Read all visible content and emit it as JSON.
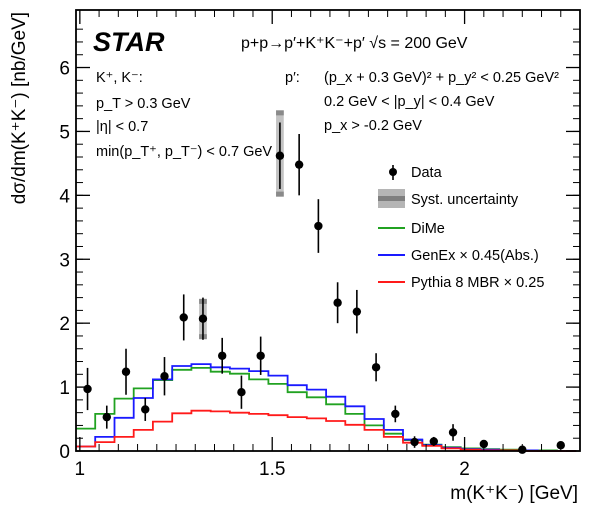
{
  "chart_data": {
    "type": "scatter",
    "experiment": "STAR",
    "process": "p+p→p′+K⁺K⁻+p′   √s = 200 GeV",
    "xlabel": "m(K⁺K⁻) [GeV]",
    "ylabel": "dσ/dm(K⁺K⁻) [nb/GeV]",
    "xlim": [
      0.99,
      2.3
    ],
    "ylim": [
      0,
      6.9
    ],
    "xticks": [
      1,
      1.5,
      2
    ],
    "yticks": [
      0,
      1,
      2,
      3,
      4,
      5,
      6
    ],
    "annotations": {
      "kaon_head": "K⁺, K⁻:",
      "kaon_cuts": [
        "p_T > 0.3 GeV",
        "|η| < 0.7",
        "min(p_T⁺, p_T⁻) < 0.7 GeV"
      ],
      "proton_head": "p′:",
      "proton_cuts": [
        "(p_x + 0.3 GeV)² + p_y² < 0.25 GeV²",
        "0.2 GeV < |p_y| < 0.4 GeV",
        "p_x > -0.2 GeV"
      ]
    },
    "legend_position": "right",
    "legend": [
      "Data",
      "Syst. uncertainty",
      "DiMe",
      "GenEx × 0.45(Abs.)",
      "Pythia 8 MBR × 0.25"
    ],
    "series": [
      {
        "name": "Data",
        "kind": "points",
        "color": "#000000",
        "x": [
          1.02,
          1.07,
          1.12,
          1.17,
          1.22,
          1.27,
          1.32,
          1.37,
          1.42,
          1.47,
          1.52,
          1.57,
          1.62,
          1.67,
          1.72,
          1.77,
          1.82,
          1.87,
          1.92,
          1.97,
          2.05,
          2.15,
          2.25
        ],
        "y": [
          0.97,
          0.53,
          1.24,
          0.65,
          1.17,
          2.09,
          2.07,
          1.49,
          0.92,
          1.49,
          4.62,
          4.48,
          3.52,
          2.32,
          2.18,
          1.31,
          0.58,
          0.14,
          0.15,
          0.29,
          0.11,
          0.02,
          0.09
        ],
        "yerr": [
          0.33,
          0.18,
          0.36,
          0.18,
          0.3,
          0.36,
          0.33,
          0.28,
          0.26,
          0.3,
          0.52,
          0.48,
          0.42,
          0.32,
          0.34,
          0.22,
          0.13,
          0.09,
          0.07,
          0.13,
          0.05,
          0.03,
          0.06
        ]
      },
      {
        "name": "Syst. uncertainty",
        "kind": "boxes",
        "color": "#808080",
        "x": [
          1.32,
          1.52
        ],
        "width": 0.02,
        "low": [
          1.75,
          3.98
        ],
        "high": [
          2.38,
          5.33
        ]
      },
      {
        "name": "DiMe",
        "kind": "step",
        "color": "#21a221",
        "edges": [
          0.99,
          1.04,
          1.09,
          1.14,
          1.19,
          1.24,
          1.29,
          1.34,
          1.39,
          1.44,
          1.49,
          1.54,
          1.59,
          1.64,
          1.69,
          1.74,
          1.79,
          1.84,
          1.89,
          1.94,
          1.99,
          2.04,
          2.09,
          2.14,
          2.19,
          2.24,
          2.29
        ],
        "values": [
          0.35,
          0.58,
          0.82,
          0.98,
          1.11,
          1.27,
          1.3,
          1.24,
          1.21,
          1.12,
          1.05,
          0.92,
          0.84,
          0.73,
          0.58,
          0.4,
          0.27,
          0.17,
          0.1,
          0.06,
          0.04,
          0.03,
          0.02,
          0.01,
          0.01,
          0.0
        ]
      },
      {
        "name": "GenEx × 0.45(Abs.)",
        "kind": "step",
        "color": "#1a1aff",
        "edges": [
          0.99,
          1.04,
          1.09,
          1.14,
          1.19,
          1.24,
          1.29,
          1.34,
          1.39,
          1.44,
          1.49,
          1.54,
          1.59,
          1.64,
          1.69,
          1.74,
          1.79,
          1.84,
          1.89,
          1.94,
          1.99,
          2.04,
          2.09,
          2.14,
          2.19,
          2.24,
          2.29
        ],
        "values": [
          0.07,
          0.22,
          0.52,
          0.83,
          1.12,
          1.33,
          1.36,
          1.31,
          1.29,
          1.25,
          1.18,
          1.03,
          0.96,
          0.85,
          0.7,
          0.5,
          0.33,
          0.18,
          0.09,
          0.05,
          0.03,
          0.02,
          0.01,
          0.01,
          0.0,
          0.0
        ]
      },
      {
        "name": "Pythia 8 MBR × 0.25",
        "kind": "step",
        "color": "#ff1a1a",
        "edges": [
          0.99,
          1.04,
          1.09,
          1.14,
          1.19,
          1.24,
          1.29,
          1.34,
          1.39,
          1.44,
          1.49,
          1.54,
          1.59,
          1.64,
          1.69,
          1.74,
          1.79,
          1.84,
          1.89,
          1.94,
          1.99,
          2.04,
          2.09,
          2.14,
          2.19,
          2.24,
          2.29
        ],
        "values": [
          0.07,
          0.14,
          0.22,
          0.33,
          0.46,
          0.59,
          0.63,
          0.62,
          0.6,
          0.58,
          0.56,
          0.53,
          0.51,
          0.47,
          0.41,
          0.33,
          0.22,
          0.13,
          0.08,
          0.04,
          0.02,
          0.01,
          0.01,
          0.0,
          0.0,
          0.0
        ]
      }
    ]
  }
}
